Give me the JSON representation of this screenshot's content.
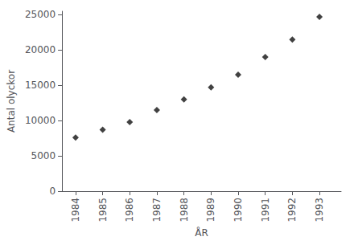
{
  "chart_data": {
    "type": "scatter",
    "xlabel": "ÅR",
    "ylabel": "Antal olyckor",
    "x": [
      1984,
      1985,
      1986,
      1987,
      1988,
      1989,
      1990,
      1991,
      1992,
      1993
    ],
    "values": [
      7600,
      8700,
      9800,
      11500,
      13000,
      14700,
      16500,
      19000,
      21500,
      24700
    ],
    "xlim": [
      1983.5,
      1993.8
    ],
    "ylim": [
      0,
      25500
    ],
    "xticks": [
      1984,
      1985,
      1986,
      1987,
      1988,
      1989,
      1990,
      1991,
      1992,
      1993
    ],
    "yticks": [
      0,
      5000,
      10000,
      15000,
      20000,
      25000
    ],
    "color": "#111111",
    "marker": "diamond",
    "grid": false
  }
}
